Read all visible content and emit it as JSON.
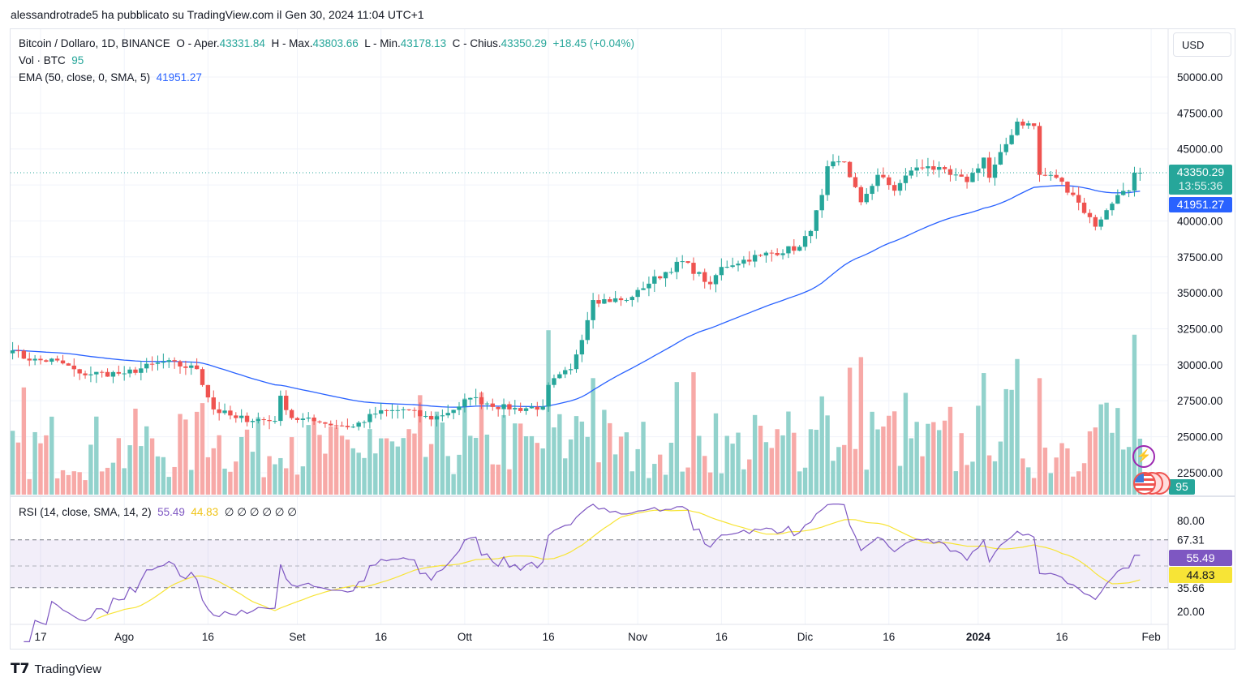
{
  "header": {
    "posted": "alessandrotrade5 ha pubblicato su TradingView.com il Gen 30, 2024 11:04 UTC+1"
  },
  "legend": {
    "symbol": "Bitcoin / Dollaro, 1D, BINANCE",
    "o_label": "O - Aper.",
    "o": "43331.84",
    "h_label": "H - Max.",
    "h": "43803.66",
    "l_label": "L - Min.",
    "l": "43178.13",
    "c_label": "C - Chius.",
    "c": "43350.29",
    "change": "+18.45 (+0.04%)",
    "vol_label": "Vol · BTC",
    "vol": "95",
    "ema_label": "EMA (50, close, 0, SMA, 5)",
    "ema": "41951.27"
  },
  "currency": "USD",
  "tags": {
    "price": "43350.29",
    "countdown": "13:55:36",
    "ema": "41951.27",
    "vol": "95",
    "rsi": "55.49",
    "rsi_ma": "44.83"
  },
  "rsi_legend": {
    "label": "RSI (14, close, SMA, 14, 2)",
    "rsi": "55.49",
    "ma": "44.83",
    "extras": "∅ ∅ ∅ ∅ ∅ ∅"
  },
  "footer": {
    "brand": "TradingView"
  },
  "colors": {
    "up": "#26a69a",
    "down": "#ef5350",
    "ema": "#2962ff",
    "rsi": "#7e57c2",
    "rsi_ma": "#f7e436"
  },
  "chart_data": {
    "type": "candlestick",
    "symbol": "BTCUSD",
    "start_date": "2023-07-12",
    "close_anchors": [
      [
        0,
        31000
      ],
      [
        3,
        30300
      ],
      [
        8,
        30300
      ],
      [
        12,
        29400
      ],
      [
        20,
        29400
      ],
      [
        27,
        30200
      ],
      [
        33,
        29700
      ],
      [
        36,
        26900
      ],
      [
        40,
        26300
      ],
      [
        47,
        26100
      ],
      [
        48,
        27850
      ],
      [
        50,
        26300
      ],
      [
        55,
        26000
      ],
      [
        61,
        25700
      ],
      [
        65,
        26600
      ],
      [
        70,
        26900
      ],
      [
        75,
        26200
      ],
      [
        80,
        27100
      ],
      [
        82,
        27700
      ],
      [
        89,
        26900
      ],
      [
        95,
        27100
      ],
      [
        96,
        28600
      ],
      [
        100,
        29700
      ],
      [
        103,
        33100
      ],
      [
        104,
        34500
      ],
      [
        110,
        34500
      ],
      [
        112,
        35200
      ],
      [
        120,
        37200
      ],
      [
        125,
        35600
      ],
      [
        127,
        36800
      ],
      [
        131,
        37300
      ],
      [
        134,
        37600
      ],
      [
        141,
        38200
      ],
      [
        143,
        39300
      ],
      [
        145,
        41800
      ],
      [
        146,
        43800
      ],
      [
        149,
        44100
      ],
      [
        152,
        41300
      ],
      [
        155,
        43200
      ],
      [
        158,
        42100
      ],
      [
        161,
        43500
      ],
      [
        164,
        43800
      ],
      [
        168,
        43200
      ],
      [
        171,
        42700
      ],
      [
        174,
        44400
      ],
      [
        175,
        43000
      ],
      [
        180,
        46900
      ],
      [
        183,
        46600
      ],
      [
        184,
        43200
      ],
      [
        187,
        43000
      ],
      [
        190,
        41800
      ],
      [
        194,
        39600
      ],
      [
        195,
        40100
      ],
      [
        198,
        41800
      ],
      [
        200,
        42100
      ],
      [
        201,
        43350
      ],
      [
        202,
        43350.29
      ]
    ],
    "price_axis": [
      50000,
      47500,
      45000,
      42500,
      40000,
      37500,
      35000,
      32500,
      30000,
      27500,
      25000,
      22500
    ],
    "price_axis_labels": [
      "50000.00",
      "47500.00",
      "45000.00",
      "40000.00",
      "37500.00",
      "35000.00",
      "32500.00",
      "30000.00",
      "27500.00",
      "25000.00",
      "22500.00"
    ],
    "rsi_axis_labels": [
      "80.00",
      "67.31",
      "35.66",
      "20.00"
    ],
    "rsi_levels": [
      80,
      67.31,
      35.66,
      20
    ],
    "x_labels": [
      {
        "day": 5,
        "label": "17"
      },
      {
        "day": 20,
        "label": "Ago"
      },
      {
        "day": 35,
        "label": "16"
      },
      {
        "day": 51,
        "label": "Set"
      },
      {
        "day": 66,
        "label": "16"
      },
      {
        "day": 81,
        "label": "Ott"
      },
      {
        "day": 96,
        "label": "16"
      },
      {
        "day": 112,
        "label": "Nov"
      },
      {
        "day": 127,
        "label": "16"
      },
      {
        "day": 142,
        "label": "Dic"
      },
      {
        "day": 157,
        "label": "16"
      },
      {
        "day": 173,
        "label": "2024"
      },
      {
        "day": 188,
        "label": "16"
      },
      {
        "day": 204,
        "label": "Feb"
      }
    ],
    "ema_period": 50,
    "rsi_period": 14,
    "rsi_ma_period": 14
  }
}
